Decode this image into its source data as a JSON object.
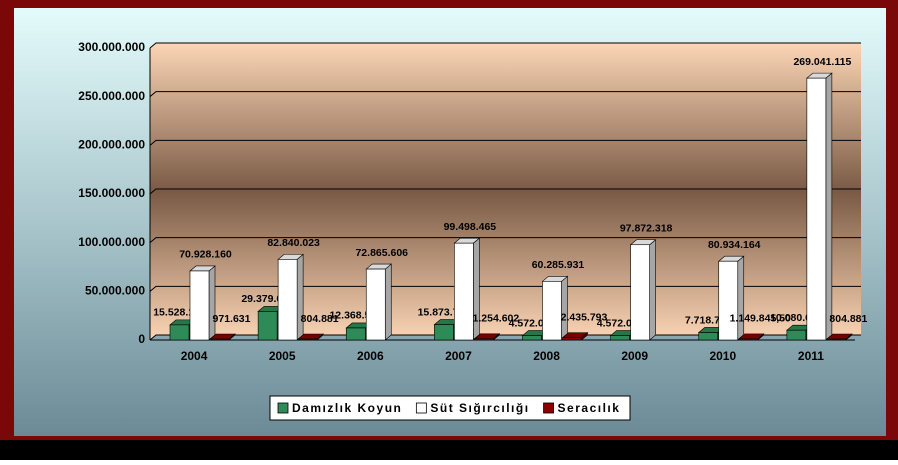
{
  "chart_data": {
    "type": "bar3d",
    "categories": [
      "2004",
      "2005",
      "2006",
      "2007",
      "2008",
      "2009",
      "2010",
      "2011"
    ],
    "series": [
      {
        "name": "Damızlık Koyun",
        "color": "#2e8b57",
        "values": [
          15528152,
          29379657,
          12368502,
          15873752,
          4572045,
          4572045,
          7718722,
          10080074
        ],
        "value_labels": [
          "15.528.152",
          "29.379.657",
          "12.368.502",
          "15.873.752",
          "4.572.045",
          "4.572.045",
          "7.718.722",
          "10.080.074"
        ]
      },
      {
        "name": "Süt Sığırcılığı",
        "color": "#ffffff",
        "values": [
          70928160,
          82840023,
          72865606,
          99498465,
          60285931,
          97872318,
          80934164,
          269041115
        ],
        "value_labels": [
          "70.928.160",
          "82.840.023",
          "72.865.606",
          "99.498.465",
          "60.285.931",
          "97.872.318",
          "80.934.164",
          "269.041.115"
        ]
      },
      {
        "name": "Seracılık",
        "color": "#8b0000",
        "values": [
          971631,
          804881,
          null,
          1254602,
          2435793,
          null,
          1149845.5,
          804881
        ],
        "value_labels": [
          "971.631",
          "804.881",
          null,
          "1.254.602",
          "2.435.793",
          null,
          "1.149.845,50",
          "804.881"
        ]
      }
    ],
    "ylim": [
      0,
      300000000
    ],
    "yticks": [
      0,
      {
        "value": 50000000,
        "label": "50.000.000"
      },
      {
        "value": 100000000,
        "label": "100.000.000"
      },
      {
        "value": 150000000,
        "label": "150.000.000"
      },
      {
        "value": 200000000,
        "label": "200.000.000"
      },
      {
        "value": 250000000,
        "label": "250.000.000"
      },
      {
        "value": 300000000,
        "label": "300.000.000"
      }
    ],
    "grid": true,
    "legend": "bottom"
  }
}
